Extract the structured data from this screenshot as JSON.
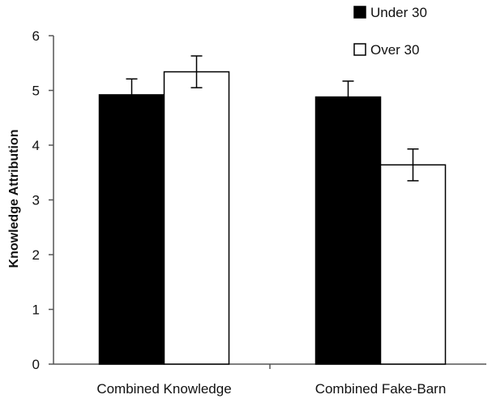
{
  "chart_data": {
    "type": "bar",
    "title": "",
    "xlabel": "",
    "ylabel": "Knowledge Attribution",
    "ylim": [
      0,
      6
    ],
    "yticks": [
      "0",
      "1",
      "2",
      "3",
      "4",
      "5",
      "6"
    ],
    "categories": [
      "Combined Knowledge",
      "Combined Fake-Barn"
    ],
    "series": [
      {
        "name": "Under 30",
        "color": "#000000",
        "values": [
          4.92,
          4.88
        ],
        "errors": [
          0.29,
          0.29
        ]
      },
      {
        "name": "Over 30",
        "color": "#ffffff",
        "values": [
          5.34,
          3.64
        ],
        "errors": [
          0.29,
          0.29
        ]
      }
    ],
    "legend": "top-right",
    "grid": false
  }
}
